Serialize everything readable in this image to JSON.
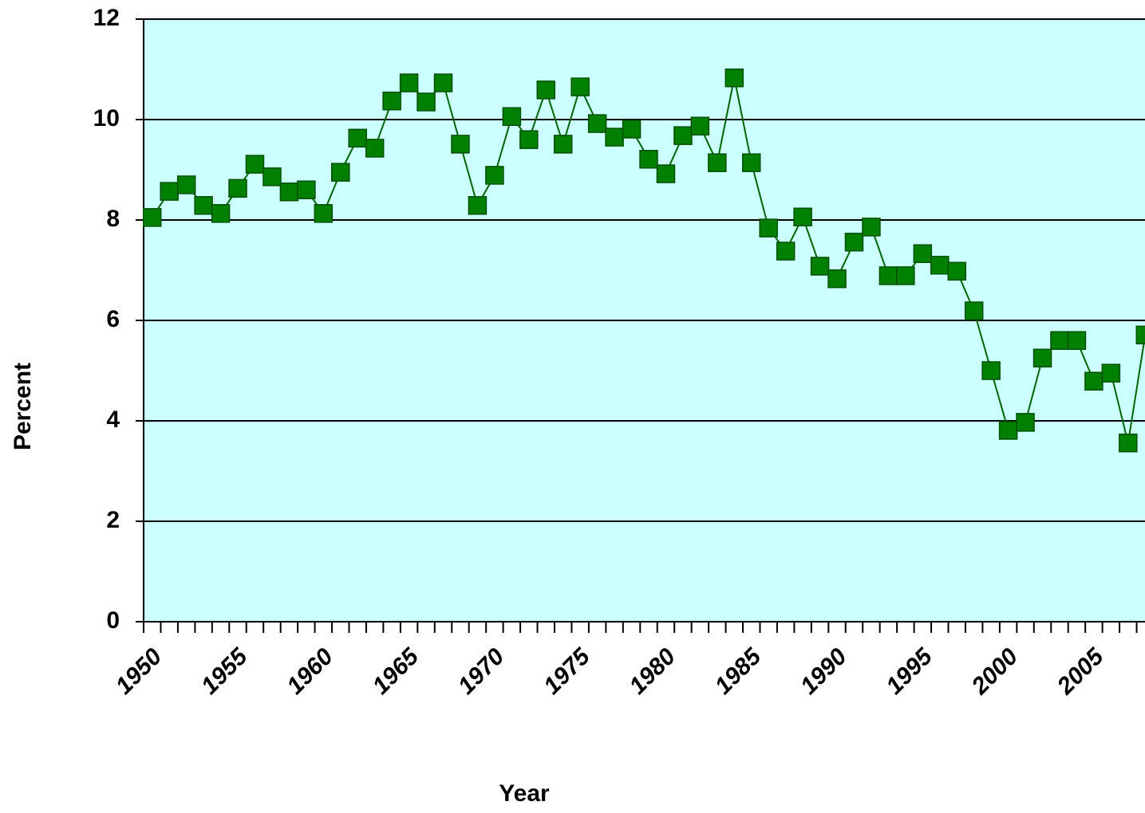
{
  "chart_data": {
    "type": "line",
    "x_label": "Year",
    "y_label": "Percent",
    "x": [
      1950,
      1951,
      1952,
      1953,
      1954,
      1955,
      1956,
      1957,
      1958,
      1959,
      1960,
      1961,
      1962,
      1963,
      1964,
      1965,
      1966,
      1967,
      1968,
      1969,
      1970,
      1971,
      1972,
      1973,
      1974,
      1975,
      1976,
      1977,
      1978,
      1979,
      1980,
      1981,
      1982,
      1983,
      1984,
      1985,
      1986,
      1987,
      1988,
      1989,
      1990,
      1991,
      1992,
      1993,
      1994,
      1995,
      1996,
      1997,
      1998,
      1999,
      2000,
      2001,
      2002,
      2003,
      2004,
      2005,
      2006,
      2007,
      2008
    ],
    "series": [
      {
        "color": "#008000",
        "values": [
          8.05,
          8.57,
          8.7,
          8.29,
          8.13,
          8.63,
          9.11,
          8.86,
          8.56,
          8.6,
          8.13,
          8.95,
          9.63,
          9.43,
          10.37,
          10.73,
          10.35,
          10.73,
          9.51,
          8.29,
          8.89,
          10.06,
          9.6,
          10.59,
          9.51,
          10.65,
          9.92,
          9.65,
          9.81,
          9.21,
          8.92,
          9.68,
          9.87,
          9.14,
          10.83,
          9.14,
          7.84,
          7.38,
          8.06,
          7.08,
          6.83,
          7.56,
          7.86,
          6.89,
          6.89,
          7.33,
          7.1,
          6.98,
          6.19,
          5.0,
          3.81,
          3.97,
          5.25,
          5.6,
          5.6,
          4.79,
          4.95,
          3.56,
          5.71
        ]
      }
    ],
    "xlim": [
      1949.5,
      2008.5
    ],
    "xticks": [
      1950,
      1955,
      1960,
      1965,
      1970,
      1975,
      1980,
      1985,
      1990,
      1995,
      2000,
      2005
    ],
    "ylim": [
      0,
      12
    ],
    "yticks": [
      0,
      2,
      4,
      6,
      8,
      10,
      12
    ],
    "grid": true
  }
}
